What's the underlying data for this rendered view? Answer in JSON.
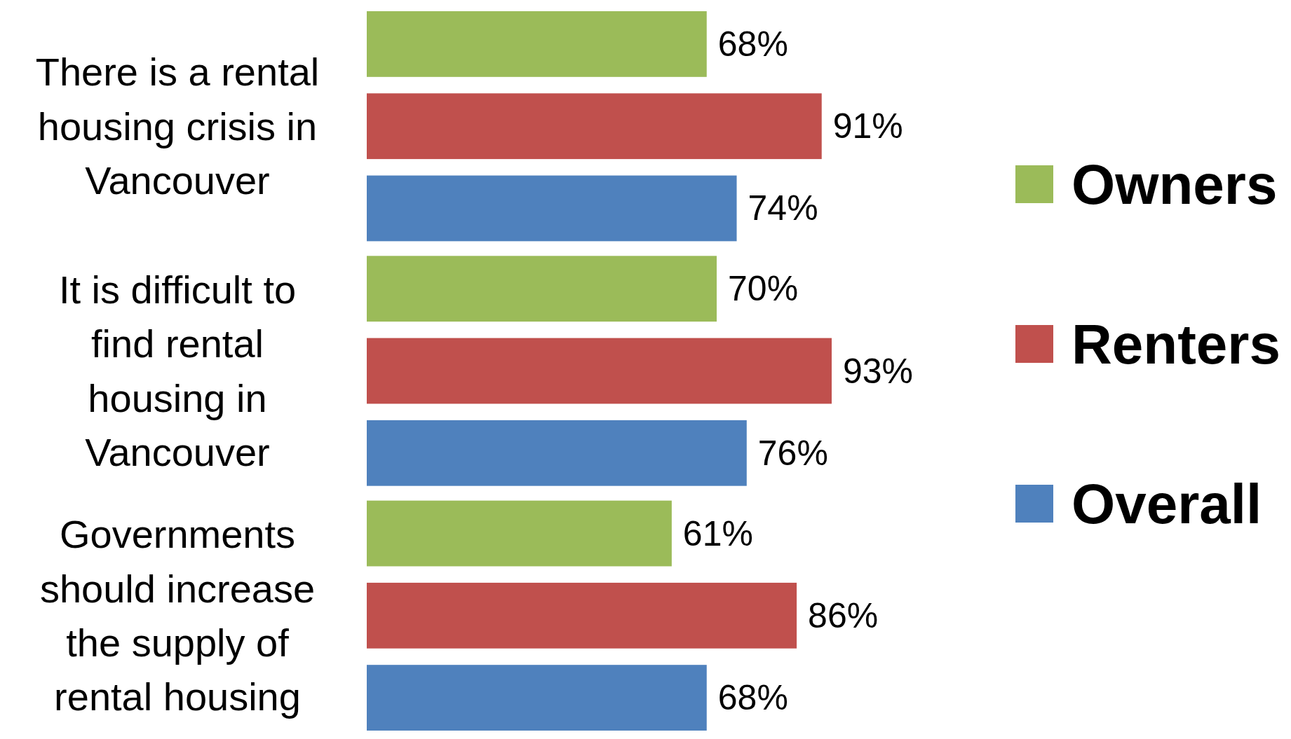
{
  "chart_data": {
    "type": "bar",
    "orientation": "horizontal",
    "categories": [
      "There is a rental housing crisis in Vancouver",
      "It is difficult to find rental housing in Vancouver",
      "Governments should increase the supply of rental housing"
    ],
    "series": [
      {
        "name": "Owners",
        "color": "#9bbb59",
        "values": [
          68,
          70,
          61
        ],
        "value_labels": [
          "68%",
          "70%",
          "61%"
        ]
      },
      {
        "name": "Renters",
        "color": "#c0504d",
        "values": [
          91,
          93,
          86
        ],
        "value_labels": [
          "91%",
          "93%",
          "86%"
        ]
      },
      {
        "name": "Overall",
        "color": "#4f81bd",
        "values": [
          74,
          76,
          68
        ],
        "value_labels": [
          "74%",
          "76%",
          "68%"
        ]
      }
    ],
    "legend": "right",
    "grid": false,
    "tick_labels": "y"
  }
}
